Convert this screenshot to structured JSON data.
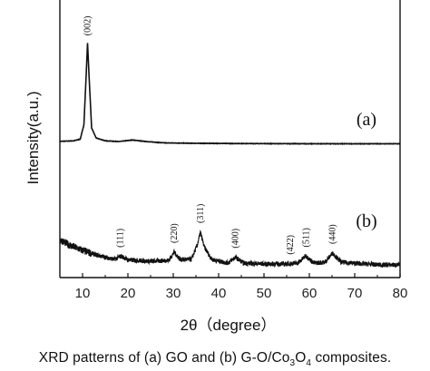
{
  "caption": {
    "text": "XRD patterns of (a) GO and (b) G-O/Co3O4 composites.",
    "html": "XRD patterns of (a) GO and (b) G-O/Co<sub style=\"font-size:10px\">3</sub>O<sub style=\"font-size:10px\">4</sub> composites."
  },
  "chart_data": {
    "type": "line",
    "title": "",
    "xlabel": "2θ（degree）",
    "ylabel": "Intensity(a.u.)",
    "xlim": [
      5,
      80
    ],
    "xticks": [
      10,
      20,
      30,
      40,
      50,
      60,
      70,
      80
    ],
    "yticks_visible": false,
    "grid": false,
    "legend": "none",
    "series": [
      {
        "name": "(a)",
        "x": [
          5,
          8,
          9.5,
          10.3,
          10.8,
          11.1,
          11.4,
          12,
          13,
          15,
          18,
          21,
          24,
          28,
          35,
          45,
          60,
          80
        ],
        "y": [
          10,
          10.4,
          12,
          25,
          70,
          99,
          72,
          22,
          13,
          10.5,
          9.8,
          11.2,
          9.8,
          8.6,
          8.2,
          8,
          7.8,
          7.8
        ],
        "peaks": [
          {
            "x": 11.1,
            "label": "(002)"
          }
        ]
      },
      {
        "name": "(b)",
        "x": [
          5,
          7,
          10,
          13,
          17,
          18.5,
          20,
          25,
          29,
          30.2,
          31.5,
          34,
          35.3,
          36,
          36.8,
          38.5,
          42,
          43.7,
          45.5,
          50,
          55,
          57.5,
          59.2,
          61,
          63.5,
          65.1,
          67,
          72,
          76,
          80
        ],
        "y": [
          20,
          17,
          14,
          11.5,
          9,
          10.8,
          8.8,
          8,
          8.5,
          13,
          9,
          9,
          17,
          24,
          16,
          9,
          7,
          10.2,
          7,
          6.5,
          6.5,
          7,
          11,
          7,
          7.5,
          12.5,
          7.5,
          6.5,
          6,
          6
        ],
        "peaks": [
          {
            "x": 18.3,
            "label": "(111)"
          },
          {
            "x": 30.2,
            "label": "(220)"
          },
          {
            "x": 36.0,
            "label": "(311)"
          },
          {
            "x": 43.7,
            "label": "(400)"
          },
          {
            "x": 55.8,
            "label": "(422)"
          },
          {
            "x": 59.3,
            "label": "(511)"
          },
          {
            "x": 65.1,
            "label": "(440)"
          }
        ]
      }
    ]
  }
}
